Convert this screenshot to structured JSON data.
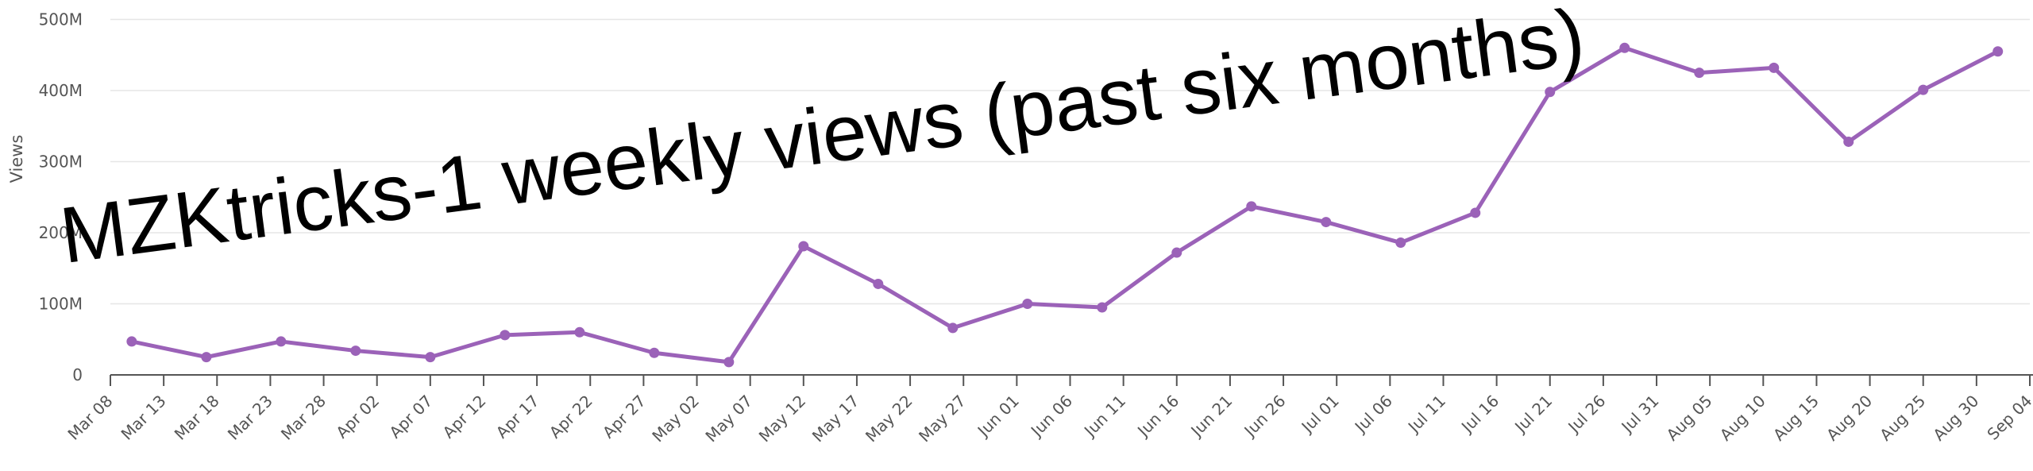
{
  "chart_data": {
    "type": "line",
    "title": "MZKtricks-1 weekly views (past six months)",
    "y_label": "Views",
    "color": "#9b62b8",
    "grid": true,
    "x": [
      "Mar 10",
      "Mar 17",
      "Mar 24",
      "Mar 31",
      "Apr 07",
      "Apr 14",
      "Apr 21",
      "Apr 28",
      "May 05",
      "May 12",
      "May 19",
      "May 26",
      "Jun 02",
      "Jun 09",
      "Jun 16",
      "Jun 23",
      "Jun 30",
      "Jul 07",
      "Jul 14",
      "Jul 21",
      "Jul 28",
      "Aug 04",
      "Aug 11",
      "Aug 18",
      "Aug 25",
      "Sep 01"
    ],
    "values": [
      47000000,
      25000000,
      47000000,
      34000000,
      25000000,
      56000000,
      60000000,
      31000000,
      18000000,
      181000000,
      128000000,
      66000000,
      100000000,
      95000000,
      172000000,
      237000000,
      215000000,
      186000000,
      228000000,
      398000000,
      460000000,
      425000000,
      432000000,
      328000000,
      401000000,
      455000000
    ],
    "xticks": [
      "Mar 08",
      "Mar 13",
      "Mar 18",
      "Mar 23",
      "Mar 28",
      "Apr 02",
      "Apr 07",
      "Apr 12",
      "Apr 17",
      "Apr 22",
      "Apr 27",
      "May 02",
      "May 07",
      "May 12",
      "May 17",
      "May 22",
      "May 27",
      "Jun 01",
      "Jun 06",
      "Jun 11",
      "Jun 16",
      "Jun 21",
      "Jun 26",
      "Jul 01",
      "Jul 06",
      "Jul 11",
      "Jul 16",
      "Jul 21",
      "Jul 26",
      "Jul 31",
      "Aug 05",
      "Aug 10",
      "Aug 15",
      "Aug 20",
      "Aug 25",
      "Aug 30",
      "Sep 04"
    ],
    "ylim": [
      0,
      500000000
    ],
    "yticks": [
      0,
      {
        "value": 100000000,
        "label": "100M"
      },
      {
        "value": 200000000,
        "label": "200M"
      },
      {
        "value": 300000000,
        "label": "300M"
      },
      {
        "value": 400000000,
        "label": "400M"
      },
      {
        "value": 500000000,
        "label": "500M"
      }
    ]
  }
}
